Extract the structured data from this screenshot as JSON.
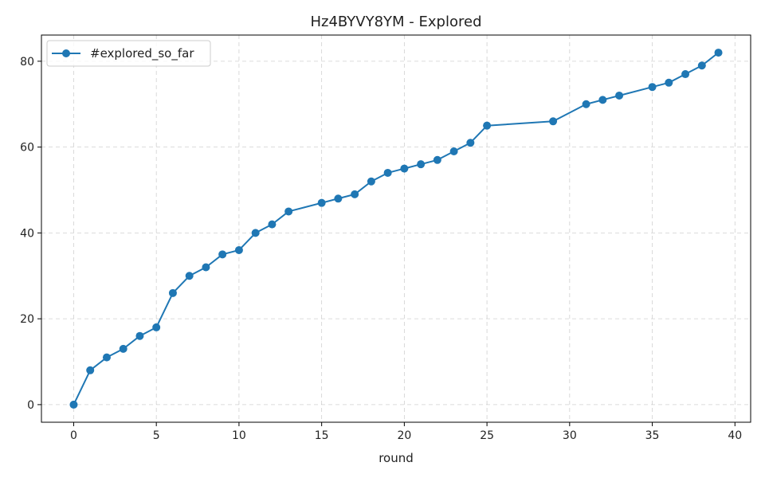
{
  "chart_data": {
    "type": "line",
    "title": "Hz4BYVY8YM - Explored",
    "xlabel": "round",
    "ylabel": "",
    "xlim": [
      -1.95,
      40.95
    ],
    "ylim": [
      -4.1,
      86.1
    ],
    "xticks": [
      0,
      5,
      10,
      15,
      20,
      25,
      30,
      35,
      40
    ],
    "yticks": [
      0,
      20,
      40,
      60,
      80
    ],
    "grid": true,
    "legend_position": "top-left",
    "series": [
      {
        "name": "#explored_so_far",
        "color": "#1f77b4",
        "marker": "circle",
        "x": [
          0,
          1,
          2,
          3,
          4,
          5,
          6,
          7,
          8,
          9,
          10,
          11,
          12,
          13,
          15,
          16,
          17,
          18,
          19,
          20,
          21,
          22,
          23,
          24,
          25,
          29,
          31,
          32,
          33,
          35,
          36,
          37,
          38,
          39
        ],
        "y": [
          0,
          8,
          11,
          13,
          16,
          18,
          26,
          30,
          32,
          35,
          36,
          40,
          42,
          45,
          47,
          48,
          49,
          52,
          54,
          55,
          56,
          57,
          59,
          61,
          65,
          66,
          70,
          71,
          72,
          74,
          75,
          77,
          79,
          82
        ]
      }
    ]
  }
}
